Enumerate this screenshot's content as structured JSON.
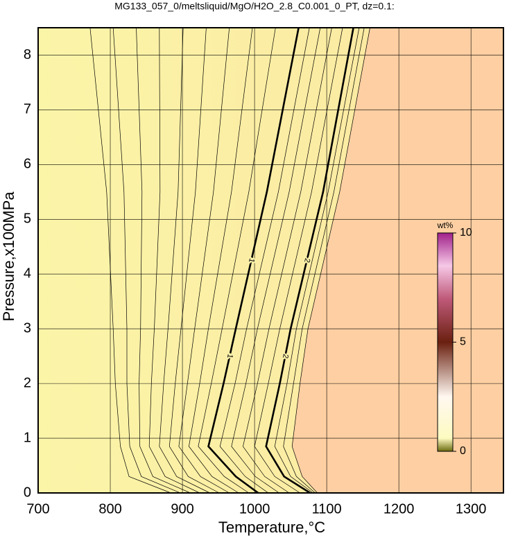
{
  "chart_data": {
    "type": "contour",
    "title": "MG133_057_0/meltsliquid/MgO/H2O_2.8_C0.001_0_PT, dz=0.1:",
    "x_label": "Temperature,°C",
    "y_label": "Pressure,x100MPa",
    "xlim": [
      700,
      1345
    ],
    "ylim": [
      0,
      8.5
    ],
    "xticks": [
      700,
      800,
      900,
      1000,
      1100,
      1200,
      1300
    ],
    "yticks": [
      0,
      1,
      2,
      3,
      4,
      5,
      6,
      7,
      8
    ],
    "grid": true,
    "contours": [
      {
        "level": 0.1,
        "x": [
          884,
          826,
          814,
          807,
          804,
          795,
          772
        ],
        "y": [
          0,
          0.3,
          0.85,
          2,
          3,
          5.5,
          8.5
        ]
      },
      {
        "level": 0.2,
        "x": [
          897,
          843,
          827,
          823,
          823,
          819,
          804
        ],
        "y": [
          0,
          0.3,
          0.85,
          2,
          3,
          5.5,
          8.5
        ]
      },
      {
        "level": 0.3,
        "x": [
          911,
          859,
          841,
          840,
          842,
          844,
          836
        ],
        "y": [
          0,
          0.3,
          0.85,
          2,
          3,
          5.5,
          8.5
        ]
      },
      {
        "level": 0.4,
        "x": [
          924,
          876,
          854,
          857,
          861,
          869,
          868
        ],
        "y": [
          0,
          0.3,
          0.85,
          2,
          3,
          5.5,
          8.5
        ]
      },
      {
        "level": 0.5,
        "x": [
          938,
          892,
          868,
          874,
          880,
          894,
          901
        ],
        "y": [
          0,
          0.3,
          0.85,
          2,
          3,
          5.5,
          8.5
        ]
      },
      {
        "level": 0.6,
        "x": [
          951,
          908,
          882,
          890,
          898,
          918,
          933
        ],
        "y": [
          0,
          0.3,
          0.85,
          2,
          3,
          5.5,
          8.5
        ]
      },
      {
        "level": 0.7,
        "x": [
          965,
          925,
          895,
          907,
          917,
          943,
          965
        ],
        "y": [
          0,
          0.3,
          0.85,
          2,
          3,
          5.5,
          8.5
        ]
      },
      {
        "level": 0.8,
        "x": [
          978,
          941,
          909,
          924,
          936,
          968,
          997
        ],
        "y": [
          0,
          0.3,
          0.85,
          2,
          3,
          5.5,
          8.5
        ]
      },
      {
        "level": 0.9,
        "x": [
          992,
          958,
          922,
          940,
          955,
          992,
          1029
        ],
        "y": [
          0,
          0.3,
          0.85,
          2,
          3,
          5.5,
          8.5
        ]
      },
      {
        "level": 1,
        "x": [
          1005,
          974,
          936,
          957,
          974,
          1017,
          1061
        ],
        "y": [
          0,
          0.3,
          0.85,
          2,
          3,
          5.5,
          8.5
        ]
      },
      {
        "level": 1.2,
        "x": [
          1019,
          987,
          952,
          973,
          989,
          1033,
          1076
        ],
        "y": [
          0,
          0.3,
          0.85,
          2,
          3,
          5.5,
          8.5
        ]
      },
      {
        "level": 1.4,
        "x": [
          1034,
          1001,
          968,
          988,
          1004,
          1048,
          1091
        ],
        "y": [
          0,
          0.3,
          0.85,
          2,
          3,
          5.5,
          8.5
        ]
      },
      {
        "level": 1.6,
        "x": [
          1048,
          1014,
          984,
          1004,
          1020,
          1064,
          1107
        ],
        "y": [
          0,
          0.3,
          0.85,
          2,
          3,
          5.5,
          8.5
        ]
      },
      {
        "level": 1.8,
        "x": [
          1063,
          1028,
          1000,
          1019,
          1035,
          1079,
          1122
        ],
        "y": [
          0,
          0.3,
          0.85,
          2,
          3,
          5.5,
          8.5
        ]
      },
      {
        "level": 2,
        "x": [
          1077,
          1041,
          1016,
          1035,
          1050,
          1095,
          1137
        ],
        "y": [
          0,
          0.3,
          0.85,
          2,
          3,
          5.5,
          8.5
        ]
      },
      {
        "level": 2.2,
        "x": [
          1081,
          1050,
          1028,
          1045,
          1058,
          1102,
          1145
        ],
        "y": [
          0,
          0.3,
          0.85,
          2,
          3,
          5.5,
          8.5
        ]
      },
      {
        "level": 2.4,
        "x": [
          1084,
          1058,
          1040,
          1054,
          1066,
          1110,
          1152
        ],
        "y": [
          0,
          0.3,
          0.85,
          2,
          3,
          5.5,
          8.5
        ]
      },
      {
        "level": 2.6,
        "x": [
          1087,
          1066,
          1052,
          1063,
          1074,
          1118,
          1160
        ],
        "y": [
          0,
          0.3,
          0.85,
          2,
          3,
          5.5,
          8.5
        ]
      }
    ],
    "colorbar": {
      "label": "wt%",
      "lim": [
        0,
        10
      ],
      "ticks": [
        0,
        5,
        10
      ]
    }
  }
}
